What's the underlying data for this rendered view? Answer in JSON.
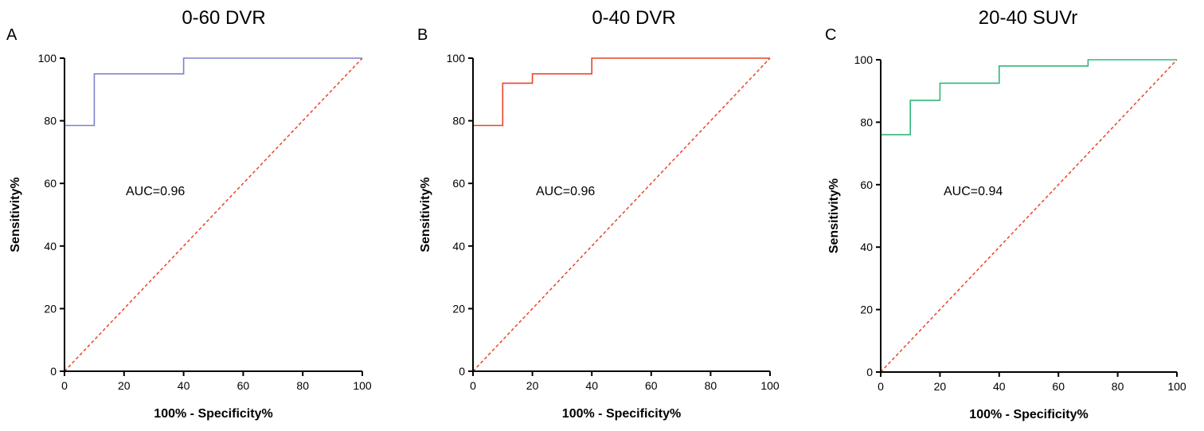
{
  "chart_data": [
    {
      "type": "line",
      "panel": "A",
      "title": "0-60 DVR",
      "xlabel": "100% - Specificity%",
      "ylabel": "Sensitivity%",
      "xlim": [
        0,
        100
      ],
      "ylim": [
        0,
        100
      ],
      "xticks": [
        0,
        20,
        40,
        60,
        80,
        100
      ],
      "yticks": [
        0,
        20,
        40,
        60,
        80,
        100
      ],
      "annotation": "AUC=0.96",
      "grid": false,
      "series": [
        {
          "step": true,
          "color": "#7b83c9",
          "x": [
            0,
            10,
            10,
            40,
            40,
            100
          ],
          "y": [
            78.5,
            78.5,
            95,
            95,
            100,
            100
          ]
        }
      ],
      "reference_line": {
        "x": [
          0,
          100
        ],
        "y": [
          0,
          100
        ],
        "color": "#e8442c",
        "dashed": true
      }
    },
    {
      "type": "line",
      "panel": "B",
      "title": "0-40 DVR",
      "xlabel": "100% - Specificity%",
      "ylabel": "Sensitivity%",
      "xlim": [
        0,
        100
      ],
      "ylim": [
        0,
        100
      ],
      "xticks": [
        0,
        20,
        40,
        60,
        80,
        100
      ],
      "yticks": [
        0,
        20,
        40,
        60,
        80,
        100
      ],
      "annotation": "AUC=0.96",
      "grid": false,
      "series": [
        {
          "step": true,
          "color": "#e8442c",
          "x": [
            0,
            10,
            10,
            20,
            20,
            40,
            40,
            100
          ],
          "y": [
            78.5,
            78.5,
            92,
            92,
            95,
            95,
            100,
            100
          ]
        }
      ],
      "reference_line": {
        "x": [
          0,
          100
        ],
        "y": [
          0,
          100
        ],
        "color": "#e8442c",
        "dashed": true
      }
    },
    {
      "type": "line",
      "panel": "C",
      "title": "20-40 SUVr",
      "xlabel": "100% - Specificity%",
      "ylabel": "Sensitivity%",
      "xlim": [
        0,
        100
      ],
      "ylim": [
        0,
        100
      ],
      "xticks": [
        0,
        20,
        40,
        60,
        80,
        100
      ],
      "yticks": [
        0,
        20,
        40,
        60,
        80,
        100
      ],
      "annotation": "AUC=0.94",
      "grid": false,
      "series": [
        {
          "step": true,
          "color": "#2eb87a",
          "x": [
            0,
            10,
            10,
            20,
            20,
            40,
            40,
            70,
            70,
            100
          ],
          "y": [
            76,
            76,
            87,
            87,
            92.5,
            92.5,
            98,
            98,
            100,
            100
          ]
        }
      ],
      "reference_line": {
        "x": [
          0,
          100
        ],
        "y": [
          0,
          100
        ],
        "color": "#e8442c",
        "dashed": true
      }
    }
  ]
}
